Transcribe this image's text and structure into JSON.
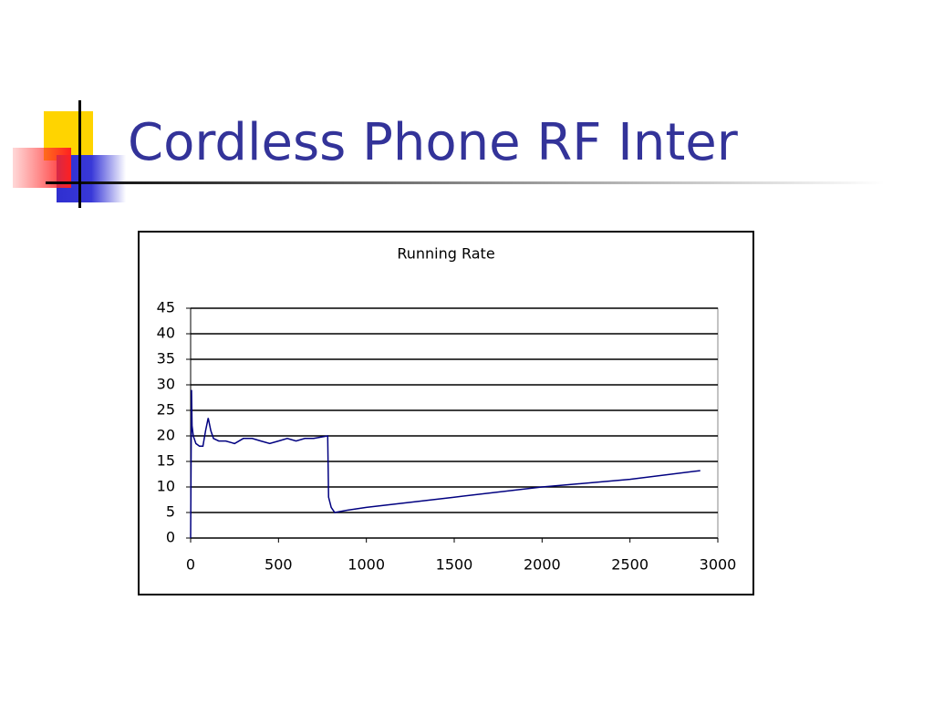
{
  "slide_title": "Cordless Phone RF Inter",
  "chart_data": {
    "type": "line",
    "title": "Running Rate",
    "x": [
      0,
      5,
      8,
      15,
      30,
      50,
      70,
      85,
      100,
      115,
      130,
      160,
      200,
      250,
      300,
      350,
      400,
      450,
      500,
      550,
      600,
      650,
      700,
      780,
      785,
      800,
      820,
      900,
      1000,
      1500,
      2000,
      2500,
      2900
    ],
    "values": [
      0,
      29,
      22,
      20,
      18.5,
      18,
      18,
      21,
      23.5,
      21,
      19.5,
      19,
      19,
      18.5,
      19.5,
      19.5,
      19,
      18.5,
      19,
      19.5,
      19,
      19.5,
      19.5,
      20,
      8,
      6,
      5,
      5.5,
      6,
      8,
      10,
      11.5,
      13.2
    ],
    "color": "#000080",
    "xlim": [
      0,
      3000
    ],
    "xticks": [
      0,
      500,
      1000,
      1500,
      2000,
      2500,
      3000
    ],
    "ylim": [
      0,
      45
    ],
    "yticks": [
      0,
      5,
      10,
      15,
      20,
      25,
      30,
      35,
      40,
      45
    ],
    "grid": true
  }
}
